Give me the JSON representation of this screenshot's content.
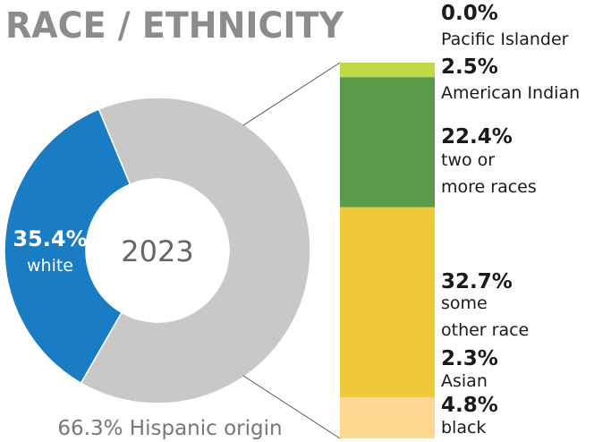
{
  "chart_data": [
    {
      "type": "donut",
      "title": "RACE / ETHNICITY",
      "center_label": "2023",
      "annotation": "66.3% Hispanic origin",
      "categories": [
        "white",
        null
      ],
      "values": [
        35.4,
        64.6
      ],
      "value_labels": [
        "35.4%",
        null
      ],
      "colors": [
        "#1a7dc4",
        "#c8c8c8"
      ]
    },
    {
      "type": "stacked-bar",
      "categories": [
        "Pacific Islander",
        "American Indian",
        "two or\nmore races",
        "some\nother race",
        "Asian",
        "black"
      ],
      "values": [
        0,
        2.5,
        22.4,
        32.7,
        2.3,
        4.8
      ],
      "value_labels": [
        "0.0%",
        "2.5%",
        "22.4%",
        "32.7%",
        "2.3%",
        "4.8%"
      ],
      "colors": [
        "#7fcfd2",
        "#bfd846",
        "#5a9a4a",
        "#efc93a",
        "#fdd890",
        "#fdd890"
      ]
    }
  ]
}
